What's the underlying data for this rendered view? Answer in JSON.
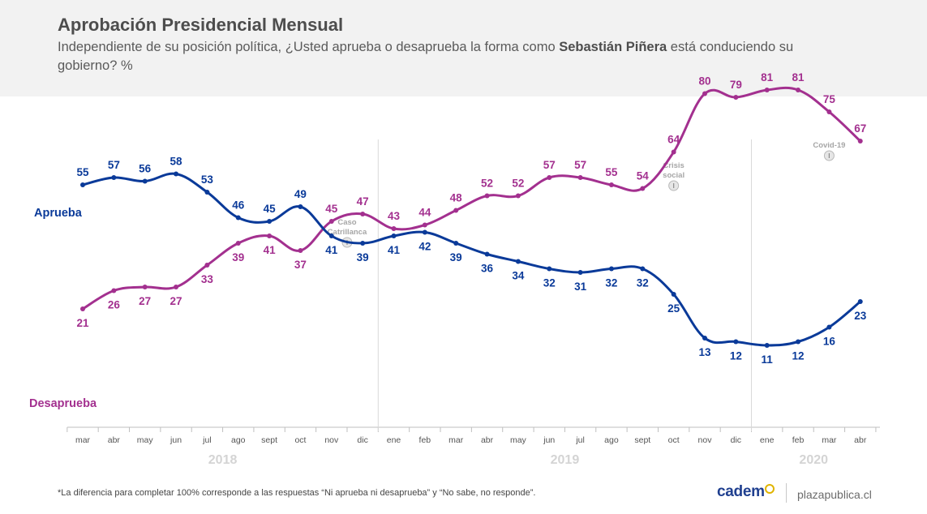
{
  "header": {
    "title": "Aprobación Presidencial Mensual",
    "subtitle_pre": "Independiente de su posición política, ¿Usted aprueba o desaprueba la forma como ",
    "subtitle_bold": "Sebastián Piñera",
    "subtitle_post": " está conduciendo su gobierno? %"
  },
  "chart_data": {
    "type": "line",
    "title": "Aprobación Presidencial Mensual",
    "categories": [
      "mar",
      "abr",
      "may",
      "jun",
      "jul",
      "ago",
      "sept",
      "oct",
      "nov",
      "dic",
      "ene",
      "feb",
      "mar",
      "abr",
      "may",
      "jun",
      "jul",
      "ago",
      "sept",
      "oct",
      "nov",
      "dic",
      "ene",
      "feb",
      "mar",
      "abr"
    ],
    "years": [
      {
        "label": "2018",
        "start": 0,
        "end": 9
      },
      {
        "label": "2019",
        "start": 10,
        "end": 21
      },
      {
        "label": "2020",
        "start": 22,
        "end": 25
      }
    ],
    "series": [
      {
        "name": "Aprueba",
        "color": "#0a3a99",
        "values": [
          55,
          57,
          56,
          58,
          53,
          46,
          45,
          49,
          41,
          39,
          41,
          42,
          39,
          36,
          34,
          32,
          31,
          32,
          32,
          25,
          13,
          12,
          11,
          12,
          16,
          23
        ]
      },
      {
        "name": "Desaprueba",
        "color": "#a3308f",
        "values": [
          21,
          26,
          27,
          27,
          33,
          39,
          41,
          37,
          45,
          47,
          43,
          44,
          48,
          52,
          52,
          57,
          57,
          55,
          54,
          64,
          80,
          79,
          81,
          81,
          75,
          67
        ]
      }
    ],
    "events": [
      {
        "lines": [
          "Caso",
          "Catrillanca"
        ],
        "index": 8.5
      },
      {
        "lines": [
          "Crisis",
          "social"
        ],
        "index": 19
      },
      {
        "lines": [
          "Covid-19"
        ],
        "index": 24
      }
    ],
    "ylim": [
      0,
      100
    ]
  },
  "footer": {
    "note": "*La diferencia para completar 100% corresponde a las respuestas “Ni aprueba ni desaprueba” y “No sabe, no responde”.",
    "brand": "cadem",
    "site": "plazapublica.cl"
  }
}
